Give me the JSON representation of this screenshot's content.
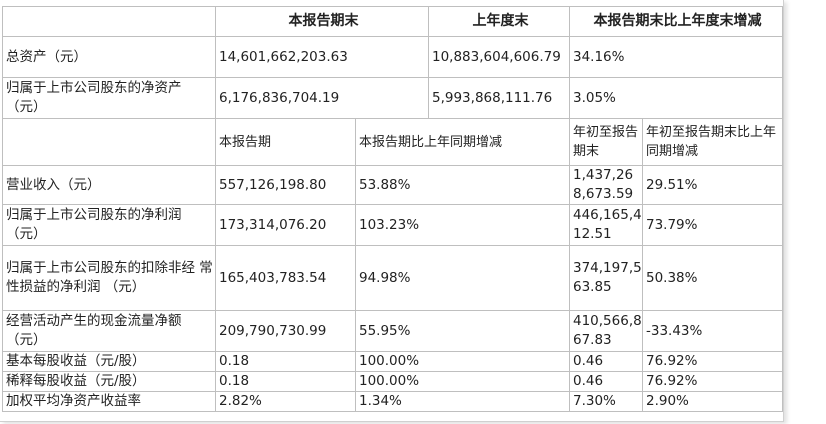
{
  "header": {
    "col1": "本报告期末",
    "col2": "上年度末",
    "col3": "本报告期末比上年度末增减"
  },
  "balance_rows": [
    {
      "label": "总资产（元）",
      "end": "14,601,662,203.63",
      "prev": "10,883,604,606.79",
      "change": "34.16%"
    },
    {
      "label": "归属于上市公司股东的净资产 （元）",
      "end": "6,176,836,704.19",
      "prev": "5,993,868,111.76",
      "change": "3.05%"
    }
  ],
  "sub_header": {
    "col1": "本报告期",
    "col2": "本报告期比上年同期增减",
    "col3": "年初至报告期末",
    "col4": "年初至报告期末比上年同期增减"
  },
  "period_rows": [
    {
      "label": "营业收入（元）",
      "cur": "557,126,198.80",
      "cur_chg": "53.88%",
      "ytd": "1,437,268,673.59",
      "ytd_chg": "29.51%"
    },
    {
      "label": "归属于上市公司股东的净利润 （元）",
      "cur": "173,314,076.20",
      "cur_chg": "103.23%",
      "ytd": "446,165,412.51",
      "ytd_chg": "73.79%"
    },
    {
      "label": "归属于上市公司股东的扣除非经 常性损益的净利润 （元）",
      "cur": "165,403,783.54",
      "cur_chg": "94.98%",
      "ytd": "374,197,563.85",
      "ytd_chg": "50.38%"
    },
    {
      "label": "经营活动产生的现金流量净额 （元）",
      "cur": "209,790,730.99",
      "cur_chg": "55.95%",
      "ytd": "410,566,867.83",
      "ytd_chg": "-33.43%"
    },
    {
      "label": "基本每股收益（元/股）",
      "cur": "0.18",
      "cur_chg": "100.00%",
      "ytd": "0.46",
      "ytd_chg": "76.92%"
    },
    {
      "label": "稀释每股收益（元/股）",
      "cur": "0.18",
      "cur_chg": "100.00%",
      "ytd": "0.46",
      "ytd_chg": "76.92%"
    },
    {
      "label": "加权平均净资产收益率",
      "cur": "2.82%",
      "cur_chg": "1.34%",
      "ytd": "7.30%",
      "ytd_chg": "2.90%"
    }
  ]
}
